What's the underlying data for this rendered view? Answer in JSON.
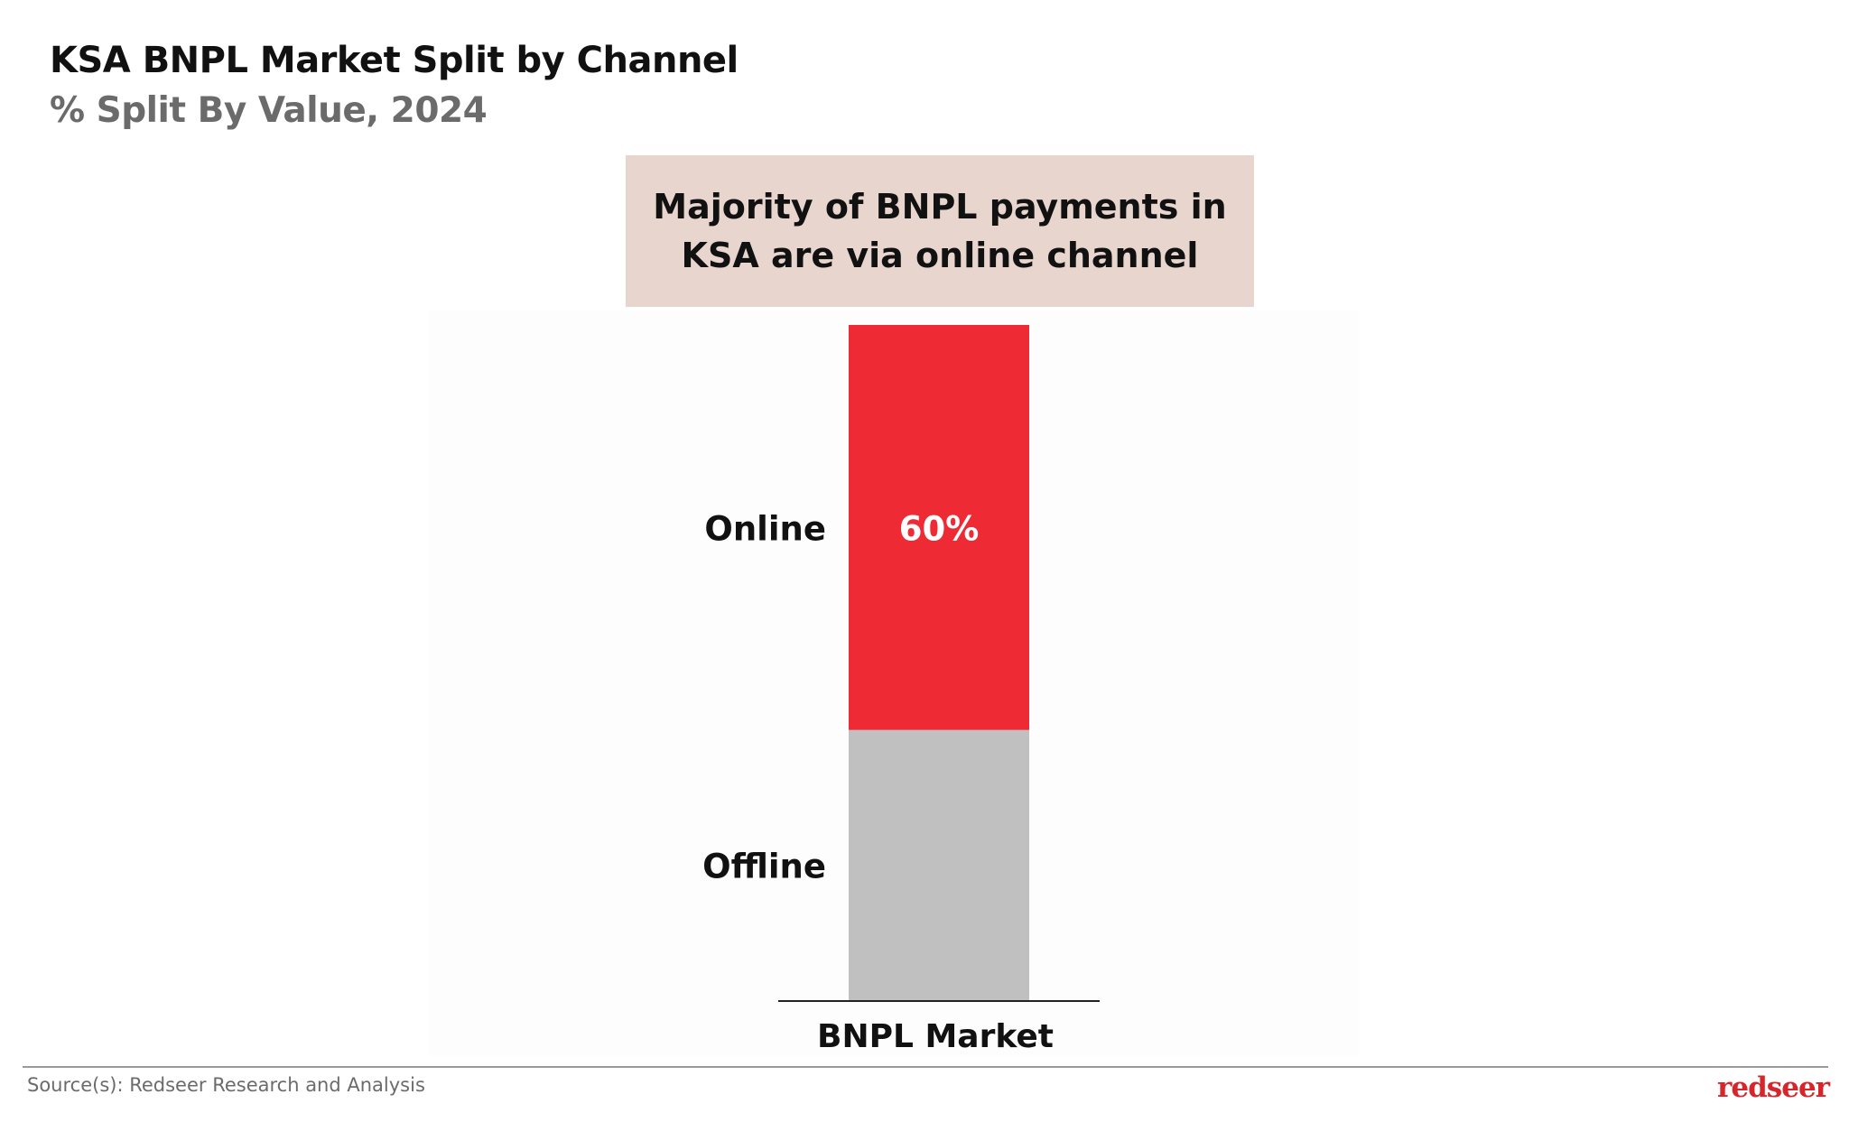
{
  "header": {
    "title": "KSA BNPL Market Split by Channel",
    "subtitle": "% Split By Value, 2024"
  },
  "callout": {
    "text": "Majority of BNPL payments in KSA are via online channel"
  },
  "chart_data": {
    "type": "bar",
    "stacked": true,
    "categories": [
      "BNPL Market"
    ],
    "series": [
      {
        "name": "Online",
        "values": [
          60
        ],
        "color": "#ee2a34",
        "data_label": "60%"
      },
      {
        "name": "Offline",
        "values": [
          40
        ],
        "color": "#c0c0c0",
        "data_label": ""
      }
    ],
    "ylim": [
      0,
      100
    ],
    "grid": false,
    "legend": "inline-left"
  },
  "footer": {
    "source": "Source(s): Redseer Research and Analysis",
    "logo": "redseer"
  },
  "colors": {
    "accent": "#ee2a34",
    "callout_bg": "#e8d5cd",
    "offline": "#c0c0c0"
  }
}
